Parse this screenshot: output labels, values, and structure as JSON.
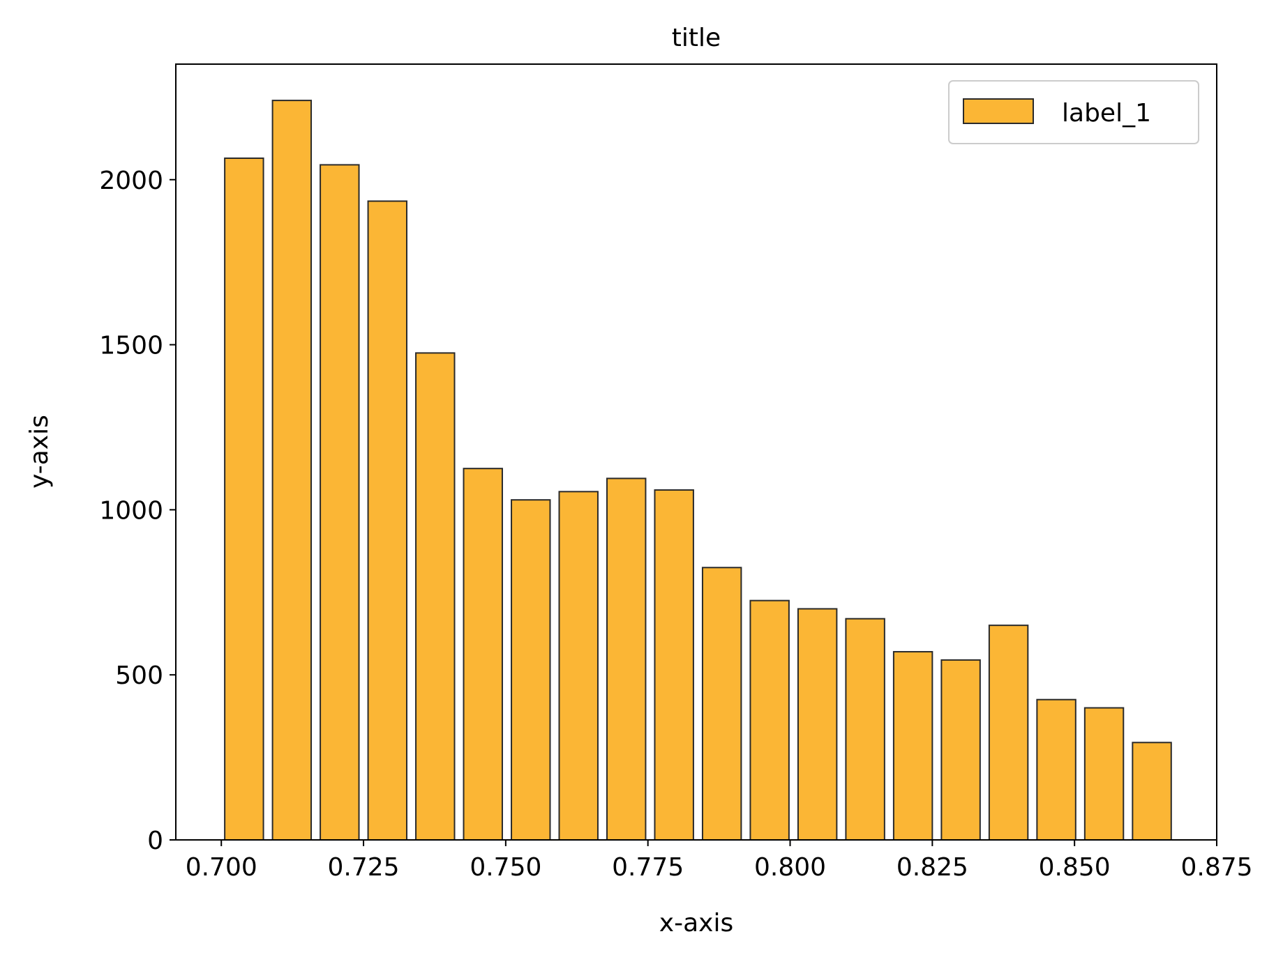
{
  "chart_data": {
    "type": "bar",
    "title": "title",
    "xlabel": "x-axis",
    "ylabel": "y-axis",
    "xlim": [
      0.692,
      0.875
    ],
    "ylim": [
      0,
      2350
    ],
    "bar_width": 0.0068,
    "x": [
      0.704,
      0.7124,
      0.7208,
      0.7292,
      0.7376,
      0.746,
      0.7544,
      0.7628,
      0.7712,
      0.7796,
      0.788,
      0.7964,
      0.8048,
      0.8132,
      0.8216,
      0.83,
      0.8384,
      0.8468,
      0.8552,
      0.8636
    ],
    "series": [
      {
        "name": "label_1",
        "values": [
          2065,
          2240,
          2045,
          1935,
          1475,
          1125,
          1030,
          1055,
          1095,
          1060,
          825,
          725,
          700,
          670,
          570,
          545,
          650,
          425,
          400,
          295
        ]
      }
    ],
    "xticks": [
      0.7,
      0.725,
      0.75,
      0.775,
      0.8,
      0.825,
      0.85,
      0.875
    ],
    "xtick_labels": [
      "0.700",
      "0.725",
      "0.750",
      "0.775",
      "0.800",
      "0.825",
      "0.850",
      "0.875"
    ],
    "yticks": [
      0,
      500,
      1000,
      1500,
      2000
    ],
    "ytick_labels": [
      "0",
      "500",
      "1000",
      "1500",
      "2000"
    ],
    "grid": false,
    "legend": {
      "position": "top-right",
      "entries": [
        "label_1"
      ]
    },
    "colors": {
      "bar_fill": "#fbb635",
      "bar_edge": "#2a2a2a",
      "axis": "#000000",
      "legend_edge": "#cccccc"
    }
  }
}
